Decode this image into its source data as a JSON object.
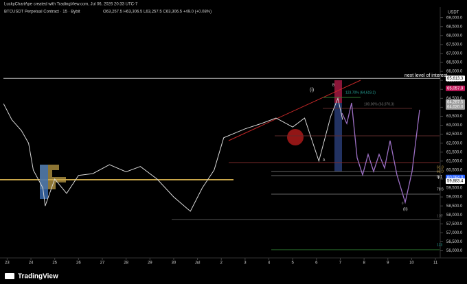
{
  "header": {
    "credit": "LuckyChartApe created with TradingView.com, Jul 06, 2026 20:33 UTC-7",
    "symbol": "BTCUSDT Perpetual Contract · 15 · Bybit",
    "ohlc": "O63,257.5 H63,306.5 L63,257.5 C63,306.5 +49.0 (+0.08%)",
    "currency": "USDT"
  },
  "footer": {
    "brand": "TradingView"
  },
  "chart_data": {
    "type": "line",
    "color": "#d8d8d8",
    "x": [
      -0.15,
      0.2,
      0.6,
      0.9,
      1.1,
      1.5,
      1.6,
      2.0,
      2.5,
      3.0,
      3.6,
      4.3,
      5.0,
      5.6,
      6.3,
      7.0,
      7.7,
      8.2,
      8.7,
      9.1,
      10.0,
      10.7,
      11.3,
      12.0,
      12.5,
      13.1,
      13.6,
      13.9,
      14.1
    ],
    "values": [
      64200,
      63300,
      62700,
      62000,
      60500,
      59500,
      58500,
      60000,
      59200,
      60200,
      60300,
      60800,
      60400,
      60700,
      60000,
      59000,
      58200,
      59500,
      60500,
      62300,
      62800,
      63100,
      63400,
      62900,
      63400,
      61000,
      63500,
      64500,
      63306.5
    ],
    "xlim": [
      -0.3,
      18.2
    ],
    "ylim": [
      55600,
      69600
    ],
    "xticks": [
      {
        "value": 0,
        "label": "23"
      },
      {
        "value": 1,
        "label": "24"
      },
      {
        "value": 2,
        "label": "25"
      },
      {
        "value": 3,
        "label": "26"
      },
      {
        "value": 4,
        "label": "27"
      },
      {
        "value": 5,
        "label": "28"
      },
      {
        "value": 6,
        "label": "29"
      },
      {
        "value": 7,
        "label": "30"
      },
      {
        "value": 8,
        "label": "Jul"
      },
      {
        "value": 9,
        "label": "2"
      },
      {
        "value": 10,
        "label": "3"
      },
      {
        "value": 11,
        "label": "4"
      },
      {
        "value": 12,
        "label": "5"
      },
      {
        "value": 13,
        "label": "6"
      },
      {
        "value": 14,
        "label": "7"
      },
      {
        "value": 15,
        "label": "8"
      },
      {
        "value": 16,
        "label": "9"
      },
      {
        "value": 17,
        "label": "10"
      },
      {
        "value": 18,
        "label": "11"
      }
    ],
    "yticks": [
      {
        "value": 69000,
        "label": "69,000.0"
      },
      {
        "value": 68500,
        "label": "68,500.0"
      },
      {
        "value": 68000,
        "label": "68,000.0"
      },
      {
        "value": 67500,
        "label": "67,500.0"
      },
      {
        "value": 67000,
        "label": "67,000.0"
      },
      {
        "value": 66500,
        "label": "66,500.0"
      },
      {
        "value": 66000,
        "label": "66,000.0"
      },
      {
        "value": 65500,
        "label": "65,500.0"
      },
      {
        "value": 65000,
        "label": "65,000.0"
      },
      {
        "value": 64500,
        "label": "64,500.0"
      },
      {
        "value": 64000,
        "label": "64,000.0"
      },
      {
        "value": 63500,
        "label": "63,500.0"
      },
      {
        "value": 63000,
        "label": "63,000.0"
      },
      {
        "value": 62500,
        "label": "62,500.0"
      },
      {
        "value": 62000,
        "label": "62,000.0"
      },
      {
        "value": 61500,
        "label": "61,500.0"
      },
      {
        "value": 61000,
        "label": "61,000.0"
      },
      {
        "value": 60500,
        "label": "60,500.0"
      },
      {
        "value": 60000,
        "label": "60,000.0"
      },
      {
        "value": 59500,
        "label": "59,500.0"
      },
      {
        "value": 59000,
        "label": "59,000.0"
      },
      {
        "value": 58500,
        "label": "58,500.0"
      },
      {
        "value": 58000,
        "label": "58,000.0"
      },
      {
        "value": 57500,
        "label": "57,500.0"
      },
      {
        "value": 57000,
        "label": "57,000.0"
      },
      {
        "value": 56500,
        "label": "56,500.0"
      },
      {
        "value": 56000,
        "label": "56,000.0"
      }
    ],
    "price_labels": [
      {
        "value": 65613.3,
        "label": "65,613.3",
        "color": "#ffffff"
      },
      {
        "value": 65057.9,
        "label": "65,057.9",
        "color": "#c2185b"
      },
      {
        "value": 64287.5,
        "label": "64,287.5",
        "color": "#9e9e9e"
      },
      {
        "value": 64020.0,
        "label": "64,020.0",
        "color": "#9e9e9e"
      },
      {
        "value": 60084.0,
        "label": "60,084.0",
        "color": "#2962ff"
      },
      {
        "value": 59883.4,
        "label": "59,883.4",
        "color": "#ffffff"
      }
    ],
    "annotations": [
      "next level of interest",
      "(i)",
      "B",
      "123.70% (64,619.2)",
      "100.00% (63,970.3)",
      "A",
      "c",
      "(ii)",
      "61.8",
      "65.0",
      "tp1",
      "78.6",
      "100",
      "123"
    ]
  }
}
